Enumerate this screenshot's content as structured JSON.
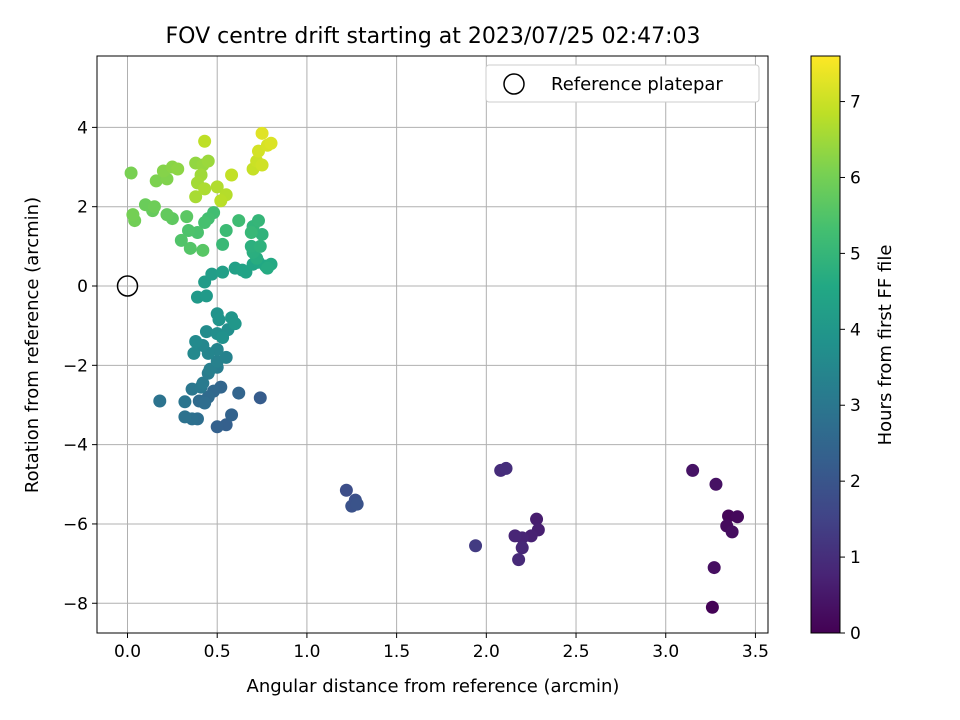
{
  "chart_data": {
    "type": "scatter",
    "title": "FOV centre drift starting at 2023/07/25 02:47:03",
    "xlabel": "Angular distance from reference (arcmin)",
    "ylabel": "Rotation from reference (arcmin)",
    "xlim": [
      -0.17,
      3.57
    ],
    "ylim": [
      -8.75,
      5.8
    ],
    "xticks": [
      0.0,
      0.5,
      1.0,
      1.5,
      2.0,
      2.5,
      3.0,
      3.5
    ],
    "xtick_labels": [
      "0.0",
      "0.5",
      "1.0",
      "1.5",
      "2.0",
      "2.5",
      "3.0",
      "3.5"
    ],
    "yticks": [
      -8,
      -6,
      -4,
      -2,
      0,
      2,
      4
    ],
    "ytick_labels": [
      "−8",
      "−6",
      "−4",
      "−2",
      "0",
      "2",
      "4"
    ],
    "grid": true,
    "legend": {
      "placement": "top-right",
      "entries": [
        {
          "label": "Reference platepar",
          "marker": "open-circle"
        }
      ]
    },
    "reference_point": {
      "x": 0.0,
      "y": 0.0
    },
    "colorbar": {
      "label": "Hours from first FF file",
      "colormap": "viridis",
      "range": [
        0,
        7.6
      ],
      "ticks": [
        0,
        1,
        2,
        3,
        4,
        5,
        6,
        7
      ],
      "tick_labels": [
        "0",
        "1",
        "2",
        "3",
        "4",
        "5",
        "6",
        "7"
      ]
    },
    "points": [
      {
        "x": 3.26,
        "y": -8.1,
        "c": 0.05
      },
      {
        "x": 3.35,
        "y": -5.8,
        "c": 0.1
      },
      {
        "x": 3.4,
        "y": -5.82,
        "c": 0.15
      },
      {
        "x": 3.34,
        "y": -6.05,
        "c": 0.2
      },
      {
        "x": 3.37,
        "y": -6.2,
        "c": 0.25
      },
      {
        "x": 3.27,
        "y": -7.1,
        "c": 0.3
      },
      {
        "x": 3.28,
        "y": -5.0,
        "c": 0.35
      },
      {
        "x": 3.15,
        "y": -4.65,
        "c": 0.4
      },
      {
        "x": 2.28,
        "y": -5.88,
        "c": 0.6
      },
      {
        "x": 2.29,
        "y": -6.15,
        "c": 0.65
      },
      {
        "x": 2.25,
        "y": -6.3,
        "c": 0.7
      },
      {
        "x": 2.2,
        "y": -6.35,
        "c": 0.75
      },
      {
        "x": 2.16,
        "y": -6.3,
        "c": 0.8
      },
      {
        "x": 2.2,
        "y": -6.6,
        "c": 0.85
      },
      {
        "x": 2.18,
        "y": -6.9,
        "c": 0.9
      },
      {
        "x": 2.08,
        "y": -4.65,
        "c": 0.95
      },
      {
        "x": 2.11,
        "y": -4.6,
        "c": 1.0
      },
      {
        "x": 1.94,
        "y": -6.55,
        "c": 1.3
      },
      {
        "x": 1.22,
        "y": -5.15,
        "c": 1.8
      },
      {
        "x": 1.27,
        "y": -5.4,
        "c": 1.85
      },
      {
        "x": 1.25,
        "y": -5.55,
        "c": 1.9
      },
      {
        "x": 1.28,
        "y": -5.5,
        "c": 1.95
      },
      {
        "x": 0.74,
        "y": -2.82,
        "c": 2.2
      },
      {
        "x": 0.55,
        "y": -3.5,
        "c": 2.3
      },
      {
        "x": 0.5,
        "y": -3.55,
        "c": 2.35
      },
      {
        "x": 0.58,
        "y": -3.25,
        "c": 2.4
      },
      {
        "x": 0.62,
        "y": -2.7,
        "c": 2.45
      },
      {
        "x": 0.52,
        "y": -2.55,
        "c": 2.5
      },
      {
        "x": 0.48,
        "y": -2.65,
        "c": 2.55
      },
      {
        "x": 0.45,
        "y": -2.8,
        "c": 2.6
      },
      {
        "x": 0.4,
        "y": -2.9,
        "c": 2.65
      },
      {
        "x": 0.43,
        "y": -2.95,
        "c": 2.7
      },
      {
        "x": 0.39,
        "y": -3.35,
        "c": 2.75
      },
      {
        "x": 0.36,
        "y": -3.35,
        "c": 2.8
      },
      {
        "x": 0.32,
        "y": -3.3,
        "c": 2.85
      },
      {
        "x": 0.18,
        "y": -2.9,
        "c": 2.9
      },
      {
        "x": 0.32,
        "y": -2.92,
        "c": 2.95
      },
      {
        "x": 0.36,
        "y": -2.6,
        "c": 3.0
      },
      {
        "x": 0.41,
        "y": -2.55,
        "c": 3.05
      },
      {
        "x": 0.42,
        "y": -2.45,
        "c": 3.1
      },
      {
        "x": 0.45,
        "y": -2.2,
        "c": 3.15
      },
      {
        "x": 0.5,
        "y": -2.05,
        "c": 3.2
      },
      {
        "x": 0.46,
        "y": -2.1,
        "c": 3.25
      },
      {
        "x": 0.5,
        "y": -1.9,
        "c": 3.3
      },
      {
        "x": 0.55,
        "y": -1.8,
        "c": 3.35
      },
      {
        "x": 0.5,
        "y": -1.6,
        "c": 3.4
      },
      {
        "x": 0.45,
        "y": -1.7,
        "c": 3.45
      },
      {
        "x": 0.42,
        "y": -1.5,
        "c": 3.5
      },
      {
        "x": 0.37,
        "y": -1.7,
        "c": 3.55
      },
      {
        "x": 0.38,
        "y": -1.4,
        "c": 3.6
      },
      {
        "x": 0.44,
        "y": -1.15,
        "c": 3.65
      },
      {
        "x": 0.5,
        "y": -1.2,
        "c": 3.7
      },
      {
        "x": 0.56,
        "y": -1.1,
        "c": 3.75
      },
      {
        "x": 0.53,
        "y": -1.3,
        "c": 3.8
      },
      {
        "x": 0.5,
        "y": -0.7,
        "c": 3.85
      },
      {
        "x": 0.51,
        "y": -0.85,
        "c": 3.9
      },
      {
        "x": 0.58,
        "y": -0.8,
        "c": 3.95
      },
      {
        "x": 0.6,
        "y": -0.95,
        "c": 4.0
      },
      {
        "x": 0.39,
        "y": -0.28,
        "c": 4.05
      },
      {
        "x": 0.44,
        "y": -0.25,
        "c": 4.1
      },
      {
        "x": 0.43,
        "y": 0.1,
        "c": 4.15
      },
      {
        "x": 0.47,
        "y": 0.3,
        "c": 4.2
      },
      {
        "x": 0.53,
        "y": 0.35,
        "c": 4.25
      },
      {
        "x": 0.6,
        "y": 0.45,
        "c": 4.3
      },
      {
        "x": 0.64,
        "y": 0.4,
        "c": 4.35
      },
      {
        "x": 0.66,
        "y": 0.35,
        "c": 4.4
      },
      {
        "x": 0.7,
        "y": 0.55,
        "c": 4.45
      },
      {
        "x": 0.73,
        "y": 0.6,
        "c": 4.5
      },
      {
        "x": 0.77,
        "y": 0.5,
        "c": 4.55
      },
      {
        "x": 0.8,
        "y": 0.55,
        "c": 4.6
      },
      {
        "x": 0.78,
        "y": 0.45,
        "c": 4.65
      },
      {
        "x": 0.72,
        "y": 0.7,
        "c": 4.7
      },
      {
        "x": 0.7,
        "y": 0.85,
        "c": 4.75
      },
      {
        "x": 0.69,
        "y": 1.0,
        "c": 4.8
      },
      {
        "x": 0.74,
        "y": 1.0,
        "c": 4.85
      },
      {
        "x": 0.75,
        "y": 1.3,
        "c": 4.9
      },
      {
        "x": 0.7,
        "y": 1.5,
        "c": 4.95
      },
      {
        "x": 0.73,
        "y": 1.65,
        "c": 5.0
      },
      {
        "x": 0.69,
        "y": 1.35,
        "c": 5.05
      },
      {
        "x": 0.53,
        "y": 1.05,
        "c": 5.1
      },
      {
        "x": 0.55,
        "y": 1.4,
        "c": 5.15
      },
      {
        "x": 0.62,
        "y": 1.65,
        "c": 5.2
      },
      {
        "x": 0.48,
        "y": 1.85,
        "c": 5.25
      },
      {
        "x": 0.45,
        "y": 1.7,
        "c": 5.3
      },
      {
        "x": 0.43,
        "y": 1.6,
        "c": 5.35
      },
      {
        "x": 0.39,
        "y": 1.35,
        "c": 5.4
      },
      {
        "x": 0.34,
        "y": 1.4,
        "c": 5.45
      },
      {
        "x": 0.3,
        "y": 1.15,
        "c": 5.5
      },
      {
        "x": 0.35,
        "y": 0.95,
        "c": 5.55
      },
      {
        "x": 0.42,
        "y": 0.9,
        "c": 5.6
      },
      {
        "x": 0.33,
        "y": 1.75,
        "c": 5.65
      },
      {
        "x": 0.25,
        "y": 1.7,
        "c": 5.7
      },
      {
        "x": 0.22,
        "y": 1.8,
        "c": 5.75
      },
      {
        "x": 0.14,
        "y": 1.9,
        "c": 5.8
      },
      {
        "x": 0.1,
        "y": 2.05,
        "c": 5.85
      },
      {
        "x": 0.15,
        "y": 2.0,
        "c": 5.9
      },
      {
        "x": 0.04,
        "y": 1.65,
        "c": 5.95
      },
      {
        "x": 0.03,
        "y": 1.8,
        "c": 6.0
      },
      {
        "x": 0.02,
        "y": 2.85,
        "c": 6.05
      },
      {
        "x": 0.16,
        "y": 2.65,
        "c": 6.1
      },
      {
        "x": 0.22,
        "y": 2.7,
        "c": 6.15
      },
      {
        "x": 0.2,
        "y": 2.9,
        "c": 6.2
      },
      {
        "x": 0.25,
        "y": 3.0,
        "c": 6.25
      },
      {
        "x": 0.28,
        "y": 2.95,
        "c": 6.3
      },
      {
        "x": 0.38,
        "y": 3.1,
        "c": 6.35
      },
      {
        "x": 0.42,
        "y": 3.05,
        "c": 6.4
      },
      {
        "x": 0.45,
        "y": 3.15,
        "c": 6.45
      },
      {
        "x": 0.41,
        "y": 2.8,
        "c": 6.5
      },
      {
        "x": 0.39,
        "y": 2.6,
        "c": 6.55
      },
      {
        "x": 0.38,
        "y": 2.25,
        "c": 6.6
      },
      {
        "x": 0.43,
        "y": 2.45,
        "c": 6.65
      },
      {
        "x": 0.5,
        "y": 2.5,
        "c": 6.7
      },
      {
        "x": 0.55,
        "y": 2.3,
        "c": 6.75
      },
      {
        "x": 0.52,
        "y": 2.15,
        "c": 6.8
      },
      {
        "x": 0.43,
        "y": 3.65,
        "c": 6.85
      },
      {
        "x": 0.58,
        "y": 2.8,
        "c": 6.9
      },
      {
        "x": 0.7,
        "y": 2.95,
        "c": 6.95
      },
      {
        "x": 0.72,
        "y": 3.15,
        "c": 7.0
      },
      {
        "x": 0.75,
        "y": 3.05,
        "c": 7.05
      },
      {
        "x": 0.73,
        "y": 3.4,
        "c": 7.1
      },
      {
        "x": 0.78,
        "y": 3.55,
        "c": 7.15
      },
      {
        "x": 0.8,
        "y": 3.6,
        "c": 7.2
      },
      {
        "x": 0.75,
        "y": 3.85,
        "c": 7.25
      }
    ]
  }
}
